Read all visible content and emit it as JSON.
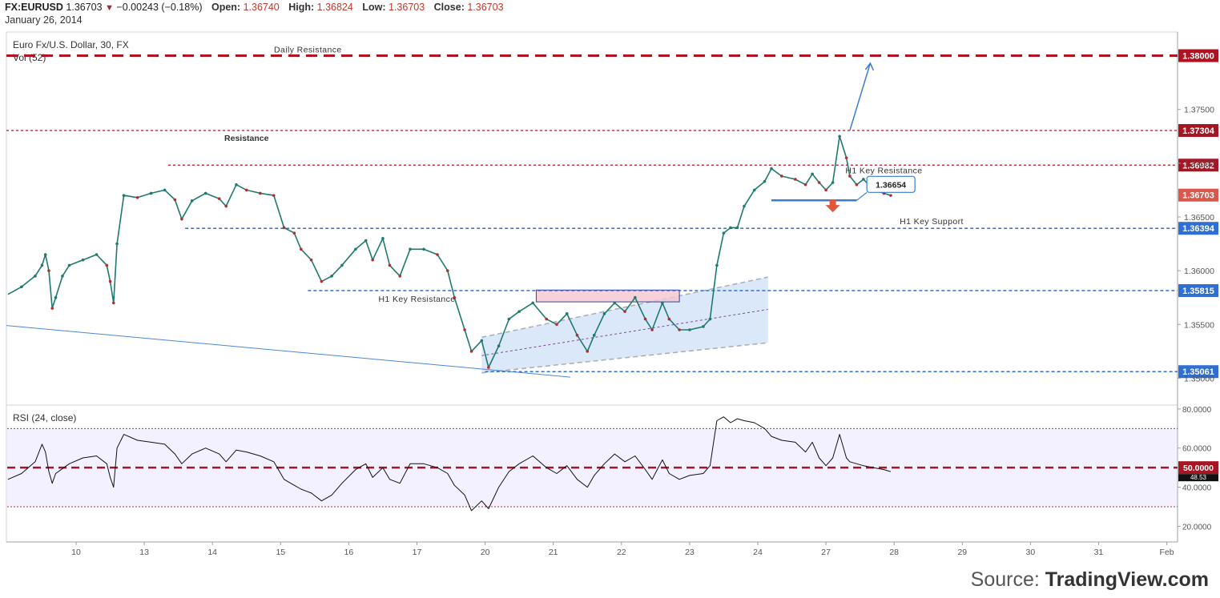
{
  "header": {
    "symbol": "FX:EURUSD",
    "price": "1.36703",
    "change_arrow": "▼",
    "change": "−0.00243 (−0.18%)",
    "open_label": "Open:",
    "open": "1.36740",
    "high_label": "High:",
    "high": "1.36824",
    "low_label": "Low:",
    "low": "1.36703",
    "close_label": "Close:",
    "close": "1.36703",
    "date": "January 26, 2014"
  },
  "source": {
    "prefix": "Source:",
    "brand": "TradingView.com"
  },
  "chart_data": {
    "type": "line",
    "title": "Euro Fx/U.S. Dollar, 30, FX",
    "volume_label": "Vol (52)",
    "price_axis": {
      "ylim": [
        1.3475,
        1.3822
      ],
      "ticks": [
        "1.37500",
        "1.37000",
        "1.36500",
        "1.36000",
        "1.35500",
        "1.35000"
      ],
      "tick_values": [
        1.375,
        1.37,
        1.365,
        1.36,
        1.355,
        1.35
      ]
    },
    "x_axis": {
      "tick_labels": [
        "10",
        "13",
        "14",
        "15",
        "16",
        "17",
        "20",
        "21",
        "22",
        "23",
        "24",
        "27",
        "28",
        "29",
        "30",
        "31",
        "Feb"
      ],
      "session_index": [
        0,
        1,
        2,
        3,
        4,
        5,
        6,
        7,
        8,
        9,
        10,
        11,
        12,
        13,
        14,
        15,
        16
      ]
    },
    "price_series_close": [
      [
        -1.0,
        1.3578
      ],
      [
        -0.8,
        1.3585
      ],
      [
        -0.6,
        1.3595
      ],
      [
        -0.5,
        1.3605
      ],
      [
        -0.45,
        1.3615
      ],
      [
        -0.4,
        1.36
      ],
      [
        -0.35,
        1.3565
      ],
      [
        -0.3,
        1.3575
      ],
      [
        -0.2,
        1.3595
      ],
      [
        -0.1,
        1.3605
      ],
      [
        0.1,
        1.361
      ],
      [
        0.3,
        1.3615
      ],
      [
        0.45,
        1.3605
      ],
      [
        0.5,
        1.359
      ],
      [
        0.55,
        1.357
      ],
      [
        0.6,
        1.3625
      ],
      [
        0.7,
        1.367
      ],
      [
        0.9,
        1.3668
      ],
      [
        1.1,
        1.3672
      ],
      [
        1.3,
        1.3675
      ],
      [
        1.45,
        1.3666
      ],
      [
        1.55,
        1.3648
      ],
      [
        1.7,
        1.3665
      ],
      [
        1.9,
        1.3672
      ],
      [
        2.1,
        1.3667
      ],
      [
        2.2,
        1.366
      ],
      [
        2.35,
        1.368
      ],
      [
        2.5,
        1.3675
      ],
      [
        2.7,
        1.3672
      ],
      [
        2.9,
        1.367
      ],
      [
        3.05,
        1.364
      ],
      [
        3.2,
        1.3635
      ],
      [
        3.3,
        1.362
      ],
      [
        3.45,
        1.361
      ],
      [
        3.6,
        1.359
      ],
      [
        3.75,
        1.3595
      ],
      [
        3.9,
        1.3605
      ],
      [
        4.1,
        1.362
      ],
      [
        4.25,
        1.3628
      ],
      [
        4.35,
        1.361
      ],
      [
        4.5,
        1.363
      ],
      [
        4.6,
        1.3605
      ],
      [
        4.75,
        1.3595
      ],
      [
        4.9,
        1.362
      ],
      [
        5.1,
        1.362
      ],
      [
        5.3,
        1.3615
      ],
      [
        5.45,
        1.36
      ],
      [
        5.55,
        1.3575
      ],
      [
        5.7,
        1.3545
      ],
      [
        5.8,
        1.3525
      ],
      [
        5.95,
        1.3535
      ],
      [
        6.05,
        1.351
      ],
      [
        6.2,
        1.353
      ],
      [
        6.35,
        1.3555
      ],
      [
        6.5,
        1.3562
      ],
      [
        6.7,
        1.357
      ],
      [
        6.9,
        1.3555
      ],
      [
        7.05,
        1.355
      ],
      [
        7.2,
        1.356
      ],
      [
        7.35,
        1.354
      ],
      [
        7.5,
        1.3525
      ],
      [
        7.6,
        1.354
      ],
      [
        7.75,
        1.356
      ],
      [
        7.9,
        1.357
      ],
      [
        8.05,
        1.3562
      ],
      [
        8.2,
        1.3575
      ],
      [
        8.35,
        1.3555
      ],
      [
        8.45,
        1.3545
      ],
      [
        8.6,
        1.357
      ],
      [
        8.7,
        1.3555
      ],
      [
        8.85,
        1.3545
      ],
      [
        9.0,
        1.3545
      ],
      [
        9.2,
        1.3548
      ],
      [
        9.3,
        1.3555
      ],
      [
        9.4,
        1.3605
      ],
      [
        9.5,
        1.3635
      ],
      [
        9.6,
        1.364
      ],
      [
        9.7,
        1.364
      ],
      [
        9.8,
        1.366
      ],
      [
        9.95,
        1.3675
      ],
      [
        10.1,
        1.3683
      ],
      [
        10.2,
        1.3695
      ],
      [
        10.35,
        1.3688
      ],
      [
        10.55,
        1.3685
      ],
      [
        10.7,
        1.368
      ],
      [
        10.8,
        1.369
      ],
      [
        10.9,
        1.3682
      ],
      [
        11.0,
        1.3675
      ],
      [
        11.1,
        1.3682
      ],
      [
        11.2,
        1.3725
      ],
      [
        11.3,
        1.3705
      ],
      [
        11.35,
        1.3688
      ],
      [
        11.45,
        1.368
      ],
      [
        11.55,
        1.3685
      ],
      [
        11.7,
        1.3675
      ],
      [
        11.85,
        1.3672
      ],
      [
        11.95,
        1.367
      ]
    ],
    "levels": [
      {
        "label": "1.38000",
        "value": 1.38,
        "note": "Daily Resistance",
        "color": "#b0131f"
      },
      {
        "label": "1.37304",
        "value": 1.37304,
        "note": "",
        "color": "#a51625"
      },
      {
        "label": "1.36982",
        "value": 1.36982,
        "note": "H1 Key Resistance",
        "color": "#a51625"
      },
      {
        "label": "1.36703",
        "value": 1.36703,
        "note": "",
        "color": "#d9574b"
      },
      {
        "label": "1.36394",
        "value": 1.36394,
        "note": "H1 Key Support",
        "color": "#2f6fd3"
      },
      {
        "label": "1.35815",
        "value": 1.35815,
        "note": "H1 Key Resistance",
        "color": "#2f6fd3"
      },
      {
        "label": "1.35061",
        "value": 1.35061,
        "note": "",
        "color": "#2f6fd3"
      }
    ],
    "annotations": {
      "resistance_text": "Resistance",
      "callout_value": "1.36654"
    },
    "rsi": {
      "label": "RSI (24, close)",
      "ylim": [
        12,
        82
      ],
      "ticks": [
        "80.0000",
        "60.0000",
        "40.0000",
        "20.0000"
      ],
      "tick_values": [
        80,
        60,
        40,
        20
      ],
      "overbought": 70,
      "oversold": 30,
      "midline_label": "50.0000",
      "midline": 50,
      "current": "48.53",
      "series": [
        [
          -1.0,
          44
        ],
        [
          -0.8,
          47
        ],
        [
          -0.6,
          53
        ],
        [
          -0.5,
          62
        ],
        [
          -0.45,
          58
        ],
        [
          -0.4,
          48
        ],
        [
          -0.35,
          42
        ],
        [
          -0.3,
          47
        ],
        [
          -0.1,
          52
        ],
        [
          0.1,
          55
        ],
        [
          0.3,
          56
        ],
        [
          0.45,
          52
        ],
        [
          0.5,
          45
        ],
        [
          0.55,
          40
        ],
        [
          0.6,
          60
        ],
        [
          0.7,
          67
        ],
        [
          0.9,
          64
        ],
        [
          1.1,
          63
        ],
        [
          1.3,
          62
        ],
        [
          1.45,
          57
        ],
        [
          1.55,
          52
        ],
        [
          1.7,
          57
        ],
        [
          1.9,
          60
        ],
        [
          2.1,
          57
        ],
        [
          2.2,
          53
        ],
        [
          2.35,
          59
        ],
        [
          2.5,
          58
        ],
        [
          2.7,
          56
        ],
        [
          2.9,
          53
        ],
        [
          3.05,
          44
        ],
        [
          3.2,
          41
        ],
        [
          3.3,
          39
        ],
        [
          3.45,
          37
        ],
        [
          3.6,
          33
        ],
        [
          3.75,
          36
        ],
        [
          3.9,
          42
        ],
        [
          4.1,
          49
        ],
        [
          4.25,
          52
        ],
        [
          4.35,
          45
        ],
        [
          4.5,
          50
        ],
        [
          4.6,
          44
        ],
        [
          4.75,
          42
        ],
        [
          4.9,
          52
        ],
        [
          5.1,
          52
        ],
        [
          5.3,
          50
        ],
        [
          5.45,
          47
        ],
        [
          5.55,
          41
        ],
        [
          5.7,
          36
        ],
        [
          5.8,
          28
        ],
        [
          5.95,
          33
        ],
        [
          6.05,
          29
        ],
        [
          6.2,
          40
        ],
        [
          6.35,
          48
        ],
        [
          6.5,
          52
        ],
        [
          6.7,
          56
        ],
        [
          6.9,
          50
        ],
        [
          7.05,
          47
        ],
        [
          7.2,
          51
        ],
        [
          7.35,
          44
        ],
        [
          7.5,
          40
        ],
        [
          7.6,
          46
        ],
        [
          7.75,
          52
        ],
        [
          7.9,
          57
        ],
        [
          8.05,
          53
        ],
        [
          8.2,
          56
        ],
        [
          8.35,
          49
        ],
        [
          8.45,
          44
        ],
        [
          8.6,
          54
        ],
        [
          8.7,
          47
        ],
        [
          8.85,
          44
        ],
        [
          9.0,
          46
        ],
        [
          9.2,
          47
        ],
        [
          9.3,
          51
        ],
        [
          9.4,
          74
        ],
        [
          9.5,
          76
        ],
        [
          9.6,
          73
        ],
        [
          9.7,
          75
        ],
        [
          9.8,
          74
        ],
        [
          9.95,
          73
        ],
        [
          10.1,
          70
        ],
        [
          10.2,
          66
        ],
        [
          10.35,
          64
        ],
        [
          10.55,
          63
        ],
        [
          10.7,
          58
        ],
        [
          10.8,
          63
        ],
        [
          10.9,
          55
        ],
        [
          11.0,
          51
        ],
        [
          11.1,
          55
        ],
        [
          11.2,
          67
        ],
        [
          11.3,
          55
        ],
        [
          11.35,
          53
        ],
        [
          11.45,
          52
        ],
        [
          11.55,
          51
        ],
        [
          11.7,
          50
        ],
        [
          11.85,
          49
        ],
        [
          11.95,
          48
        ]
      ]
    }
  }
}
